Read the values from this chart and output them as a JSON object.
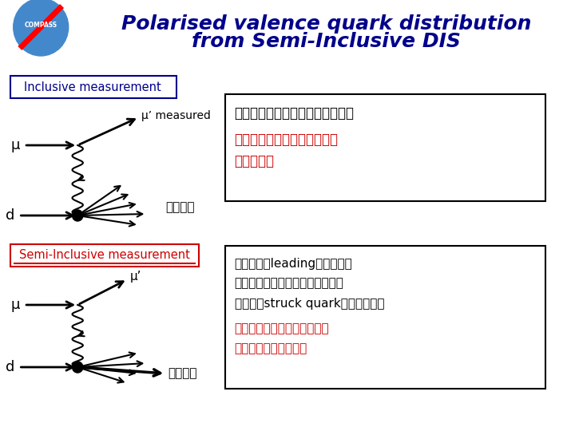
{
  "title_line1": "Polarised valence quark distribution",
  "title_line2": "from Semi-Inclusive DIS",
  "title_color": "#00008B",
  "title_fontsize": 18,
  "bg_color": "#FFFFFF",
  "inclusive_box_label": "Inclusive measurement",
  "inclusive_box_color": "#00008B",
  "semi_box_label": "Semi-Inclusive measurement",
  "semi_box_color": "#CC0000",
  "right_box1_lines": [
    "生成されたハドロンを特定しない",
    "－＞すべてのクォーク分布を",
    "　測定する"
  ],
  "right_box1_colors": [
    "#000000",
    "#CC0000",
    "#CC0000"
  ],
  "right_box2_lines": [
    "生成されたleadingハドロンの",
    "電荷が正か、負かを特定すること",
    "でもとのstruck quarkのを区別する",
    "－＞バレンスクォーク分布を",
    "　導き出して測定する"
  ],
  "right_box2_colors": [
    "#000000",
    "#000000",
    "#000000",
    "#CC0000",
    "#CC0000"
  ],
  "mu_label": "μ",
  "mu_prime_label": "μ’",
  "d_label": "d",
  "measured_label": "measured",
  "tokuteiSezu_label": "特定せず",
  "tokuteiSuru_label": "特定する"
}
